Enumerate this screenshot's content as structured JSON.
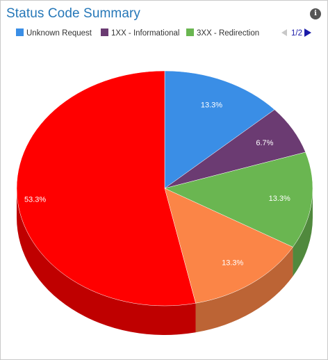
{
  "header": {
    "title": "Status Code Summary",
    "info_icon": "info-icon"
  },
  "legend": {
    "items": [
      {
        "label": "Unknown Request",
        "color": "#3a8ee6"
      },
      {
        "label": "1XX - Informational",
        "color": "#6b3b72"
      },
      {
        "label": "3XX - Redirection",
        "color": "#6ab651"
      }
    ],
    "pager": {
      "text": "1/2",
      "prev_icon": "triangle-left-icon",
      "next_icon": "triangle-right-icon"
    }
  },
  "chart_data": {
    "type": "pie",
    "title": "Status Code Summary",
    "style": "3d",
    "slices": [
      {
        "name": "Unknown Request",
        "value": 13.3,
        "label": "13.3%",
        "color": "#3a8ee6"
      },
      {
        "name": "1XX - Informational",
        "value": 6.7,
        "label": "6.7%",
        "color": "#6b3b72"
      },
      {
        "name": "3XX - Redirection",
        "value": 13.3,
        "label": "13.3%",
        "color": "#6ab651"
      },
      {
        "name": "",
        "value": 13.3,
        "label": "13.3%",
        "color": "#fb8547"
      },
      {
        "name": "",
        "value": 53.3,
        "label": "53.3%",
        "color": "#ff0000"
      }
    ],
    "start_angle_deg": 0,
    "direction": "clockwise",
    "legend_position": "top",
    "legend_page": "1/2"
  }
}
